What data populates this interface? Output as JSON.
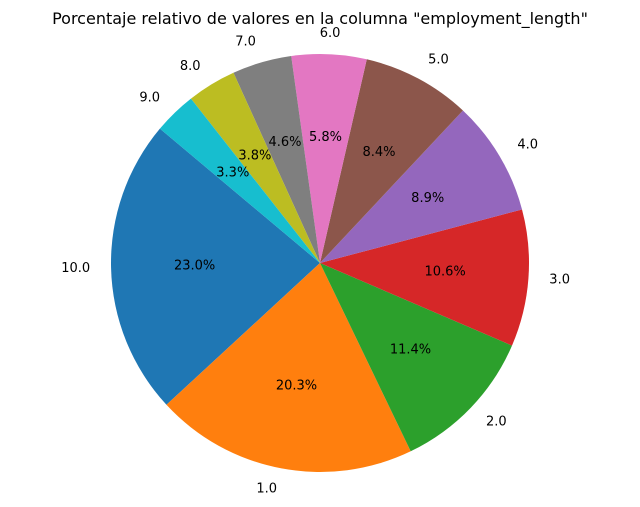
{
  "chart_data": {
    "type": "pie",
    "title": "Porcentaje relativo de valores en la columna \"employment_length\"",
    "slices": [
      {
        "label": "10.0",
        "value": 23.0,
        "pct_text": "23.0%",
        "color": "#1f77b4"
      },
      {
        "label": "1.0",
        "value": 20.3,
        "pct_text": "20.3%",
        "color": "#ff7f0e"
      },
      {
        "label": "2.0",
        "value": 11.4,
        "pct_text": "11.4%",
        "color": "#2ca02c"
      },
      {
        "label": "3.0",
        "value": 10.6,
        "pct_text": "10.6%",
        "color": "#d62728"
      },
      {
        "label": "4.0",
        "value": 8.9,
        "pct_text": "8.9%",
        "color": "#9467bd"
      },
      {
        "label": "5.0",
        "value": 8.4,
        "pct_text": "8.4%",
        "color": "#8c564b"
      },
      {
        "label": "6.0",
        "value": 5.8,
        "pct_text": "5.8%",
        "color": "#e377c2"
      },
      {
        "label": "7.0",
        "value": 4.6,
        "pct_text": "4.6%",
        "color": "#7f7f7f"
      },
      {
        "label": "8.0",
        "value": 3.8,
        "pct_text": "3.8%",
        "color": "#bcbd22"
      },
      {
        "label": "9.0",
        "value": 3.3,
        "pct_text": "3.3%",
        "color": "#17becf"
      }
    ],
    "start_angle_deg": 140,
    "direction": "counterclockwise",
    "legend": "none",
    "grid": false
  }
}
